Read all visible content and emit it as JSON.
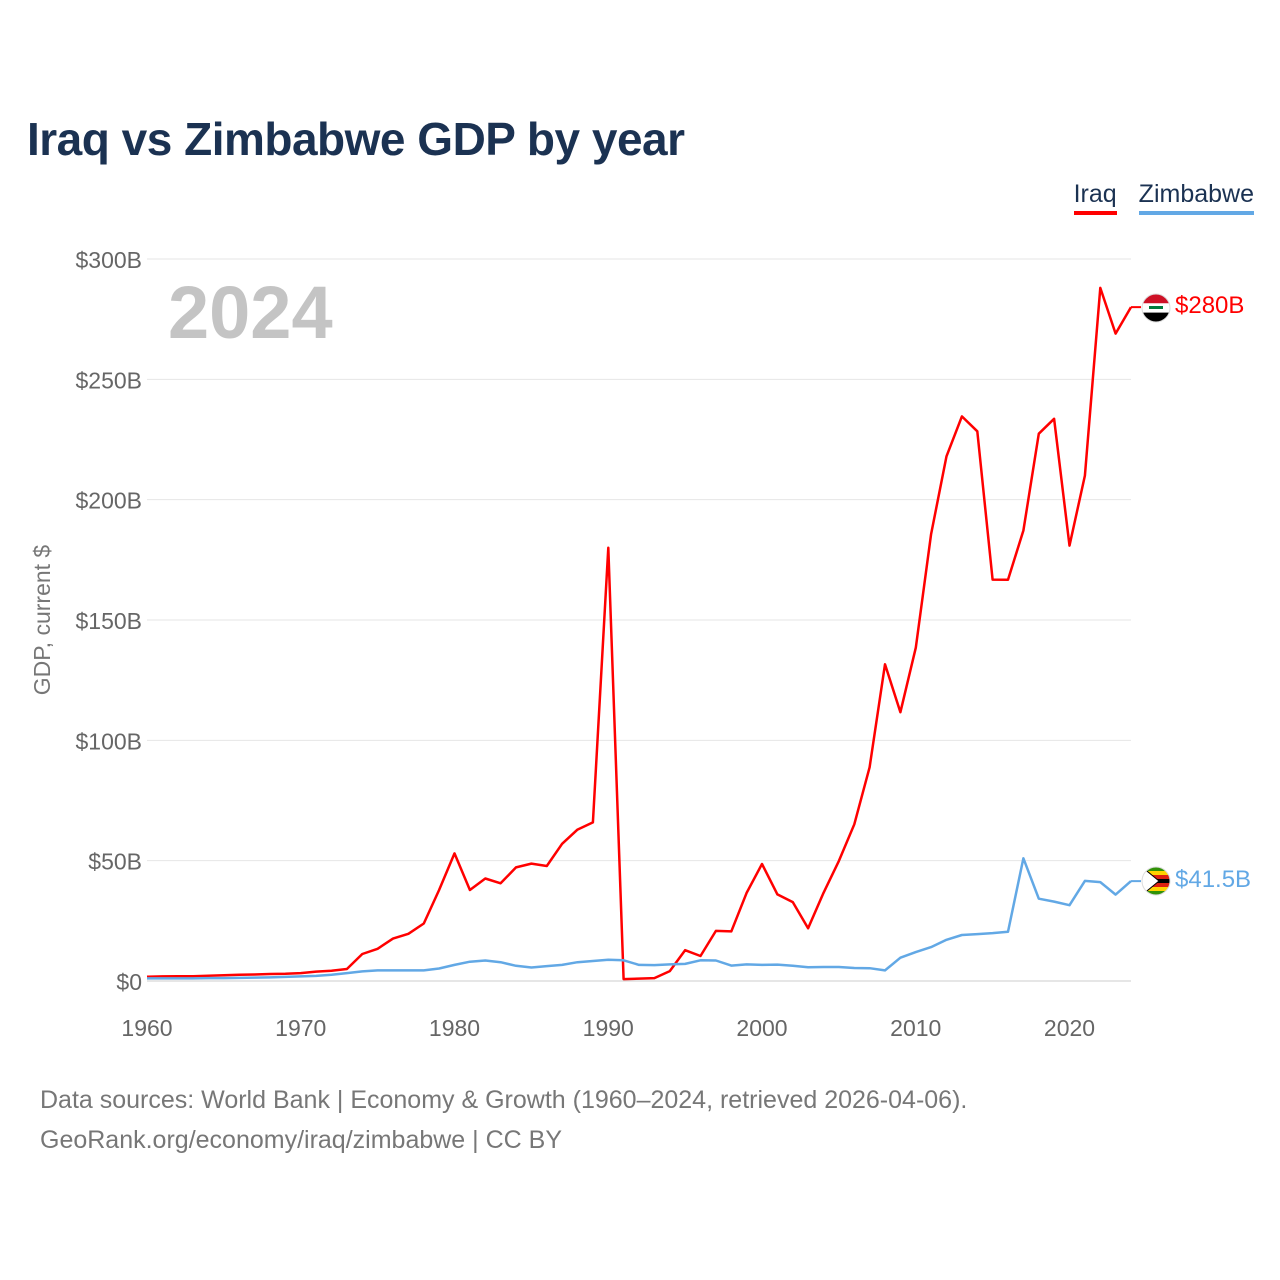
{
  "title": "Iraq vs Zimbabwe GDP by year",
  "legend": [
    {
      "name": "Iraq",
      "color": "#ff0000"
    },
    {
      "name": "Zimbabwe",
      "color": "#62a8e5"
    }
  ],
  "footer": {
    "line1": "Data sources: World Bank | Economy & Growth (1960–2024, retrieved 2026-04-06).",
    "line2": "GeoRank.org/economy/iraq/zimbabwe | CC BY"
  },
  "chart_data": {
    "type": "line",
    "title": "Iraq vs Zimbabwe GDP by year",
    "year_label": "2024",
    "ylabel": "GDP, current $",
    "xlabel": "",
    "xlim": [
      1960,
      2024
    ],
    "ylim": [
      0,
      300
    ],
    "y_unit": "billions USD",
    "x_ticks": [
      1960,
      1970,
      1980,
      1990,
      2000,
      2010,
      2020
    ],
    "x_tick_labels": [
      "1960",
      "1970",
      "1980",
      "1990",
      "2000",
      "2010",
      "2020"
    ],
    "y_ticks": [
      0,
      50,
      100,
      150,
      200,
      250,
      300
    ],
    "y_tick_labels": [
      "$0",
      "$50B",
      "$100B",
      "$150B",
      "$200B",
      "$250B",
      "$300B"
    ],
    "grid": true,
    "legend_position": "top-right",
    "x": [
      1960,
      1961,
      1962,
      1963,
      1964,
      1965,
      1966,
      1967,
      1968,
      1969,
      1970,
      1971,
      1972,
      1973,
      1974,
      1975,
      1976,
      1977,
      1978,
      1979,
      1980,
      1981,
      1982,
      1983,
      1984,
      1985,
      1986,
      1987,
      1988,
      1989,
      1990,
      1991,
      1992,
      1993,
      1994,
      1995,
      1996,
      1997,
      1998,
      1999,
      2000,
      2001,
      2002,
      2003,
      2004,
      2005,
      2006,
      2007,
      2008,
      2009,
      2010,
      2011,
      2012,
      2013,
      2014,
      2015,
      2016,
      2017,
      2018,
      2019,
      2020,
      2021,
      2022,
      2023,
      2024
    ],
    "series": [
      {
        "name": "Iraq",
        "color": "#ff0000",
        "end_label": "$280B",
        "values": [
          1.8,
          1.9,
          2.0,
          2.0,
          2.2,
          2.4,
          2.6,
          2.7,
          2.9,
          3.0,
          3.3,
          3.9,
          4.3,
          5.0,
          11.2,
          13.4,
          17.6,
          19.6,
          23.9,
          37.8,
          53.0,
          37.8,
          42.6,
          40.6,
          47.2,
          48.8,
          47.8,
          57.0,
          62.9,
          65.9,
          180.0,
          0.8,
          1.0,
          1.2,
          4.1,
          12.8,
          10.4,
          20.8,
          20.6,
          36.6,
          48.6,
          36.0,
          32.8,
          21.9,
          36.6,
          49.9,
          65.1,
          88.8,
          131.6,
          111.7,
          138.5,
          185.7,
          218.0,
          234.6,
          228.4,
          166.8,
          166.7,
          187.2,
          227.4,
          233.6,
          180.9,
          210.0,
          288.0,
          269.0,
          280.0
        ]
      },
      {
        "name": "Zimbabwe",
        "color": "#62a8e5",
        "end_label": "$41.5B",
        "values": [
          1.1,
          1.1,
          1.1,
          1.1,
          1.2,
          1.2,
          1.3,
          1.4,
          1.5,
          1.7,
          1.9,
          2.1,
          2.6,
          3.3,
          4.0,
          4.4,
          4.4,
          4.4,
          4.4,
          5.2,
          6.7,
          8.0,
          8.5,
          7.8,
          6.3,
          5.6,
          6.2,
          6.7,
          7.8,
          8.3,
          8.8,
          8.6,
          6.7,
          6.6,
          6.9,
          7.1,
          8.6,
          8.5,
          6.4,
          6.9,
          6.7,
          6.8,
          6.3,
          5.7,
          5.8,
          5.8,
          5.4,
          5.3,
          4.4,
          9.7,
          12.0,
          14.1,
          17.1,
          19.1,
          19.5,
          19.9,
          20.5,
          51.0,
          34.2,
          33.0,
          31.5,
          41.6,
          41.1,
          35.9,
          41.5
        ]
      }
    ]
  }
}
